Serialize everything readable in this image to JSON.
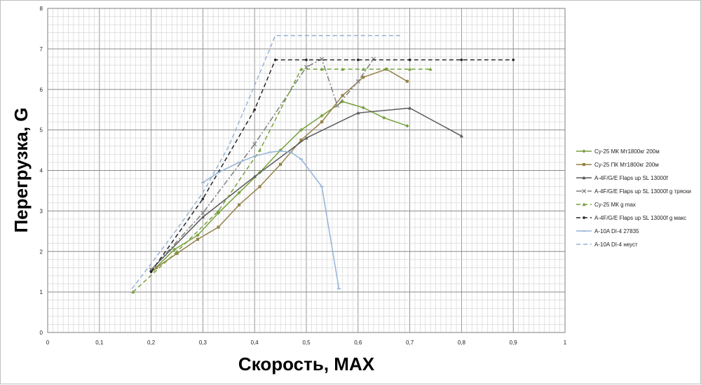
{
  "chart_data": {
    "type": "line",
    "title": "",
    "xlabel": "Скорость, МАХ",
    "ylabel": "Перегрузка, G",
    "xlim": [
      0,
      1
    ],
    "ylim": [
      0,
      8
    ],
    "x_ticks": [
      "0",
      "0,1",
      "0,2",
      "0,3",
      "0,4",
      "0,5",
      "0,6",
      "0,7",
      "0,8",
      "0,9",
      "1"
    ],
    "y_ticks": [
      "0",
      "1",
      "2",
      "3",
      "4",
      "5",
      "6",
      "7",
      "8"
    ],
    "grid": true,
    "legend_position": "right",
    "series": [
      {
        "name": "Су-25 МК Мт1800кг 200м",
        "color": "#77a03c",
        "dash": "solid",
        "marker": "diamond",
        "x": [
          0.205,
          0.245,
          0.29,
          0.33,
          0.37,
          0.41,
          0.45,
          0.49,
          0.53,
          0.57,
          0.61,
          0.65,
          0.695
        ],
        "y": [
          1.55,
          2.05,
          2.4,
          2.95,
          3.45,
          3.95,
          4.5,
          5.0,
          5.35,
          5.7,
          5.55,
          5.3,
          5.1
        ]
      },
      {
        "name": "Су-25 ПК Мт1800кг 200м",
        "color": "#958148",
        "dash": "solid",
        "marker": "square",
        "x": [
          0.21,
          0.25,
          0.29,
          0.33,
          0.37,
          0.41,
          0.45,
          0.49,
          0.53,
          0.57,
          0.61,
          0.655,
          0.695
        ],
        "y": [
          1.6,
          1.95,
          2.3,
          2.6,
          3.15,
          3.6,
          4.15,
          4.75,
          5.2,
          5.85,
          6.3,
          6.5,
          6.2
        ]
      },
      {
        "name": "A-4F/G/E Flaps up SL 13000f",
        "color": "#595959",
        "dash": "solid",
        "marker": "triangle",
        "x": [
          0.2,
          0.3,
          0.4,
          0.5,
          0.6,
          0.7,
          0.8
        ],
        "y": [
          1.55,
          2.85,
          3.85,
          4.8,
          5.42,
          5.54,
          4.85
        ]
      },
      {
        "name": "A-4F/G/E Flaps up SL 13000f g тряски",
        "color": "#7f7f7f",
        "dash": "dashdot",
        "marker": "x",
        "x": [
          0.2,
          0.3,
          0.4,
          0.5,
          0.53,
          0.56,
          0.6,
          0.63
        ],
        "y": [
          1.55,
          2.95,
          4.65,
          6.55,
          6.75,
          5.6,
          6.2,
          6.75
        ]
      },
      {
        "name": "Су-25 МК g max",
        "color": "#77a03c",
        "dash": "dash",
        "marker": "triangle",
        "x": [
          0.165,
          0.25,
          0.33,
          0.41,
          0.49,
          0.53,
          0.57,
          0.61,
          0.655,
          0.7,
          0.74
        ],
        "y": [
          1.0,
          2.0,
          3.0,
          4.5,
          6.5,
          6.5,
          6.5,
          6.5,
          6.5,
          6.5,
          6.5
        ]
      },
      {
        "name": "A-4F/G/E Flaps up SL 13000f g макс",
        "color": "#262626",
        "dash": "dash",
        "marker": "dot",
        "x": [
          0.2,
          0.3,
          0.4,
          0.44,
          0.5,
          0.6,
          0.7,
          0.8,
          0.9
        ],
        "y": [
          1.5,
          3.3,
          5.5,
          6.73,
          6.73,
          6.73,
          6.73,
          6.73,
          6.73
        ]
      },
      {
        "name": "A-10A DI-4 27835",
        "color": "#95b3d7",
        "dash": "solid",
        "marker": "dash",
        "x": [
          0.3,
          0.33,
          0.37,
          0.4,
          0.43,
          0.45,
          0.47,
          0.49,
          0.53,
          0.563
        ],
        "y": [
          3.7,
          3.95,
          4.2,
          4.35,
          4.45,
          4.48,
          4.45,
          4.28,
          3.6,
          1.08
        ]
      },
      {
        "name": "A-10A DI-4 неуст",
        "color": "#95b3d7",
        "dash": "dash",
        "marker": "none",
        "x": [
          0.163,
          0.2,
          0.25,
          0.3,
          0.35,
          0.4,
          0.44,
          0.5,
          0.55,
          0.6,
          0.65,
          0.685
        ],
        "y": [
          1.08,
          1.7,
          2.55,
          3.45,
          4.6,
          6.1,
          7.33,
          7.33,
          7.33,
          7.33,
          7.33,
          7.33
        ]
      }
    ]
  }
}
